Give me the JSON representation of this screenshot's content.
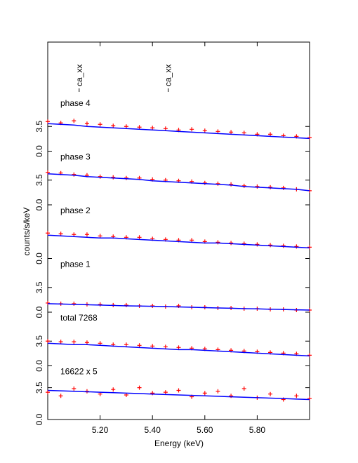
{
  "figure": {
    "xlabel": "Energy (keV)",
    "ylabel": "counts/s/keV",
    "xlim": [
      5.0,
      6.0
    ],
    "xticks": [
      {
        "value": 5.2,
        "label": "5.20"
      },
      {
        "value": 5.4,
        "label": "5.40"
      },
      {
        "value": 5.6,
        "label": "5.60"
      },
      {
        "value": 5.8,
        "label": "5.80"
      }
    ],
    "line_ids": [
      {
        "label": "ca_xx",
        "x": 5.12
      },
      {
        "label": "ca_xx",
        "x": 5.46
      }
    ]
  },
  "chart_data": [
    {
      "type": "scatter",
      "title": "phase 4",
      "ylim": [
        0,
        7.6
      ],
      "yticks": [
        {
          "value": 0,
          "label": "0.0"
        },
        3.5
      ],
      "x": [
        5.0,
        5.05,
        5.1,
        5.15,
        5.2,
        5.25,
        5.3,
        5.35,
        5.4,
        5.45,
        5.5,
        5.55,
        5.6,
        5.65,
        5.7,
        5.75,
        5.8,
        5.85,
        5.9,
        5.95,
        6.0
      ],
      "series": [
        {
          "color": "#ff0000",
          "values": [
            4.2,
            4.0,
            4.3,
            3.9,
            3.8,
            3.6,
            3.5,
            3.4,
            3.3,
            3.2,
            3.0,
            3.1,
            2.9,
            2.8,
            2.7,
            2.6,
            2.4,
            2.4,
            2.2,
            2.1,
            1.9
          ]
        },
        {
          "color": "#0000ff",
          "values": [
            3.9,
            3.8,
            3.7,
            3.5,
            3.4,
            3.3,
            3.2,
            3.1,
            3.0,
            2.9,
            2.8,
            2.7,
            2.6,
            2.5,
            2.4,
            2.3,
            2.2,
            2.1,
            2.0,
            1.9,
            1.8
          ]
        }
      ]
    },
    {
      "type": "scatter",
      "title": "phase 3",
      "ylim": [
        0,
        7.6
      ],
      "yticks": [
        {
          "value": 0,
          "label": "0.0"
        },
        3.5
      ],
      "x": [
        5.0,
        5.05,
        5.1,
        5.15,
        5.2,
        5.25,
        5.3,
        5.35,
        5.4,
        5.45,
        5.5,
        5.55,
        5.6,
        5.65,
        5.7,
        5.75,
        5.8,
        5.85,
        5.9,
        5.95,
        6.0
      ],
      "series": [
        {
          "color": "#ff0000",
          "values": [
            4.6,
            4.5,
            4.3,
            4.2,
            4.0,
            3.9,
            3.8,
            3.8,
            3.6,
            3.5,
            3.4,
            3.3,
            3.1,
            3.0,
            2.9,
            2.7,
            2.6,
            2.5,
            2.4,
            2.2,
            2.0
          ]
        },
        {
          "color": "#0000ff",
          "values": [
            4.4,
            4.3,
            4.2,
            4.0,
            3.9,
            3.8,
            3.7,
            3.6,
            3.4,
            3.3,
            3.2,
            3.1,
            3.0,
            2.9,
            2.8,
            2.6,
            2.5,
            2.4,
            2.3,
            2.2,
            2.0
          ]
        }
      ]
    },
    {
      "type": "scatter",
      "title": "phase 2",
      "ylim": [
        0,
        7.6
      ],
      "yticks": [
        {
          "value": 0,
          "label": "0.0"
        }
      ],
      "x": [
        5.0,
        5.05,
        5.1,
        5.15,
        5.2,
        5.25,
        5.3,
        5.35,
        5.4,
        5.45,
        5.5,
        5.55,
        5.6,
        5.65,
        5.7,
        5.75,
        5.8,
        5.85,
        5.9,
        5.95,
        6.0
      ],
      "series": [
        {
          "color": "#ff0000",
          "values": [
            3.6,
            3.5,
            3.4,
            3.4,
            3.2,
            3.1,
            3.0,
            3.0,
            2.8,
            2.7,
            2.6,
            2.6,
            2.4,
            2.3,
            2.2,
            2.1,
            2.0,
            1.9,
            1.8,
            1.7,
            1.6
          ]
        },
        {
          "color": "#0000ff",
          "values": [
            3.3,
            3.2,
            3.1,
            3.0,
            2.9,
            2.9,
            2.8,
            2.7,
            2.6,
            2.5,
            2.4,
            2.3,
            2.2,
            2.2,
            2.1,
            2.0,
            1.9,
            1.8,
            1.7,
            1.6,
            1.5
          ]
        }
      ]
    },
    {
      "type": "scatter",
      "title": "phase 1",
      "ylim": [
        0,
        7.6
      ],
      "yticks": [
        {
          "value": 0,
          "label": "0.0"
        },
        3.5
      ],
      "x": [
        5.0,
        5.05,
        5.1,
        5.15,
        5.2,
        5.25,
        5.3,
        5.35,
        5.4,
        5.45,
        5.5,
        5.55,
        5.6,
        5.65,
        5.7,
        5.75,
        5.8,
        5.85,
        5.9,
        5.95,
        6.0
      ],
      "series": [
        {
          "color": "#ff0000",
          "values": [
            1.3,
            1.2,
            1.2,
            1.1,
            1.1,
            1.0,
            1.0,
            0.9,
            0.9,
            0.8,
            0.9,
            0.7,
            0.7,
            0.6,
            0.6,
            0.5,
            0.5,
            0.4,
            0.4,
            0.3,
            0.3
          ]
        },
        {
          "color": "#0000ff",
          "values": [
            1.2,
            1.15,
            1.1,
            1.05,
            1.0,
            0.95,
            0.9,
            0.87,
            0.83,
            0.8,
            0.75,
            0.7,
            0.65,
            0.6,
            0.56,
            0.5,
            0.47,
            0.42,
            0.38,
            0.34,
            0.3
          ]
        }
      ]
    },
    {
      "type": "scatter",
      "title": "total 7268",
      "ylim": [
        0,
        7.6
      ],
      "yticks": [
        {
          "value": 0,
          "label": "0.0"
        },
        3.5
      ],
      "x": [
        5.0,
        5.05,
        5.1,
        5.15,
        5.2,
        5.25,
        5.3,
        5.35,
        5.4,
        5.45,
        5.5,
        5.55,
        5.6,
        5.65,
        5.7,
        5.75,
        5.8,
        5.85,
        5.9,
        5.95,
        6.0
      ],
      "series": [
        {
          "color": "#ff0000",
          "values": [
            3.5,
            3.4,
            3.4,
            3.3,
            3.2,
            3.0,
            3.0,
            2.9,
            2.8,
            2.7,
            2.6,
            2.5,
            2.4,
            2.3,
            2.2,
            2.1,
            2.0,
            1.9,
            1.8,
            1.7,
            1.5
          ]
        },
        {
          "color": "#0000ff",
          "values": [
            3.2,
            3.1,
            3.0,
            3.0,
            2.9,
            2.8,
            2.7,
            2.6,
            2.5,
            2.4,
            2.3,
            2.3,
            2.2,
            2.1,
            2.0,
            1.9,
            1.8,
            1.7,
            1.6,
            1.5,
            1.4
          ]
        }
      ]
    },
    {
      "type": "scatter",
      "title": "16622 x 5",
      "ylim": [
        0,
        5.9
      ],
      "yticks": [
        {
          "value": 0,
          "label": "0.0"
        },
        3.5
      ],
      "x": [
        5.0,
        5.05,
        5.1,
        5.15,
        5.2,
        5.25,
        5.3,
        5.35,
        5.4,
        5.45,
        5.5,
        5.55,
        5.6,
        5.65,
        5.7,
        5.75,
        5.8,
        5.85,
        5.9,
        5.95,
        6.0
      ],
      "series": [
        {
          "color": "#ff0000",
          "values": [
            3.0,
            2.6,
            3.4,
            3.1,
            2.8,
            3.3,
            2.7,
            3.5,
            2.9,
            3.0,
            3.2,
            2.5,
            2.9,
            3.1,
            2.6,
            3.4,
            2.4,
            2.8,
            2.2,
            2.6,
            2.3
          ]
        },
        {
          "color": "#0000ff",
          "values": [
            3.2,
            3.15,
            3.1,
            3.05,
            3.0,
            2.95,
            2.9,
            2.85,
            2.8,
            2.75,
            2.7,
            2.65,
            2.6,
            2.55,
            2.5,
            2.45,
            2.4,
            2.35,
            2.3,
            2.25,
            2.2
          ]
        }
      ]
    }
  ]
}
